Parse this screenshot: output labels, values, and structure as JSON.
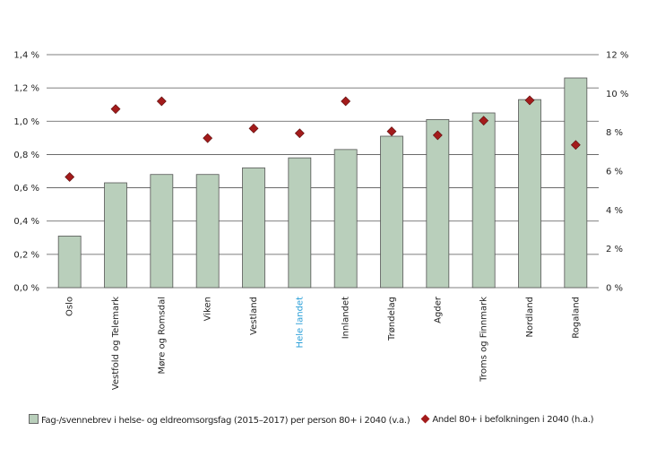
{
  "chart_data": {
    "type": "bar",
    "categories": [
      "Oslo",
      "Vestfold og Telemark",
      "Møre og Romsdal",
      "Viken",
      "Vestland",
      "Hele landet",
      "Innlandet",
      "Trøndelag",
      "Agder",
      "Troms og Finnmark",
      "Nordland",
      "Rogaland"
    ],
    "highlight_category": "Hele landet",
    "series": [
      {
        "name": "Fag-/svennebrev i helse- og eldreomsorgsfag (2015–2017) per person 80+ i 2040 (v.a.)",
        "type": "bar",
        "axis": "left",
        "color": "#b9cfbb",
        "values": [
          0.31,
          0.63,
          0.68,
          0.68,
          0.72,
          0.78,
          0.83,
          0.91,
          1.01,
          1.05,
          1.13,
          1.26
        ]
      },
      {
        "name": "Andel 80+ i befolkningen i 2040 (h.a.)",
        "type": "scatter",
        "marker": "diamond",
        "axis": "right",
        "color": "#a31b1b",
        "values": [
          5.7,
          9.2,
          9.6,
          7.7,
          8.2,
          7.95,
          9.6,
          8.05,
          7.85,
          8.6,
          9.65,
          7.35
        ]
      }
    ],
    "left_axis": {
      "ylim": [
        0,
        1.4
      ],
      "ticks": [
        "0,0 %",
        "0,2 %",
        "0,4 %",
        "0,6 %",
        "0,8 %",
        "1,0 %",
        "1,2 %",
        "1,4 %"
      ]
    },
    "right_axis": {
      "ylim": [
        0,
        12
      ],
      "ticks": [
        "0 %",
        "2 %",
        "4 %",
        "6 %",
        "8 %",
        "10 %",
        "12 %"
      ]
    },
    "highlight_color": "#2a9fd8",
    "grid": true,
    "legend_placement": "bottom"
  }
}
